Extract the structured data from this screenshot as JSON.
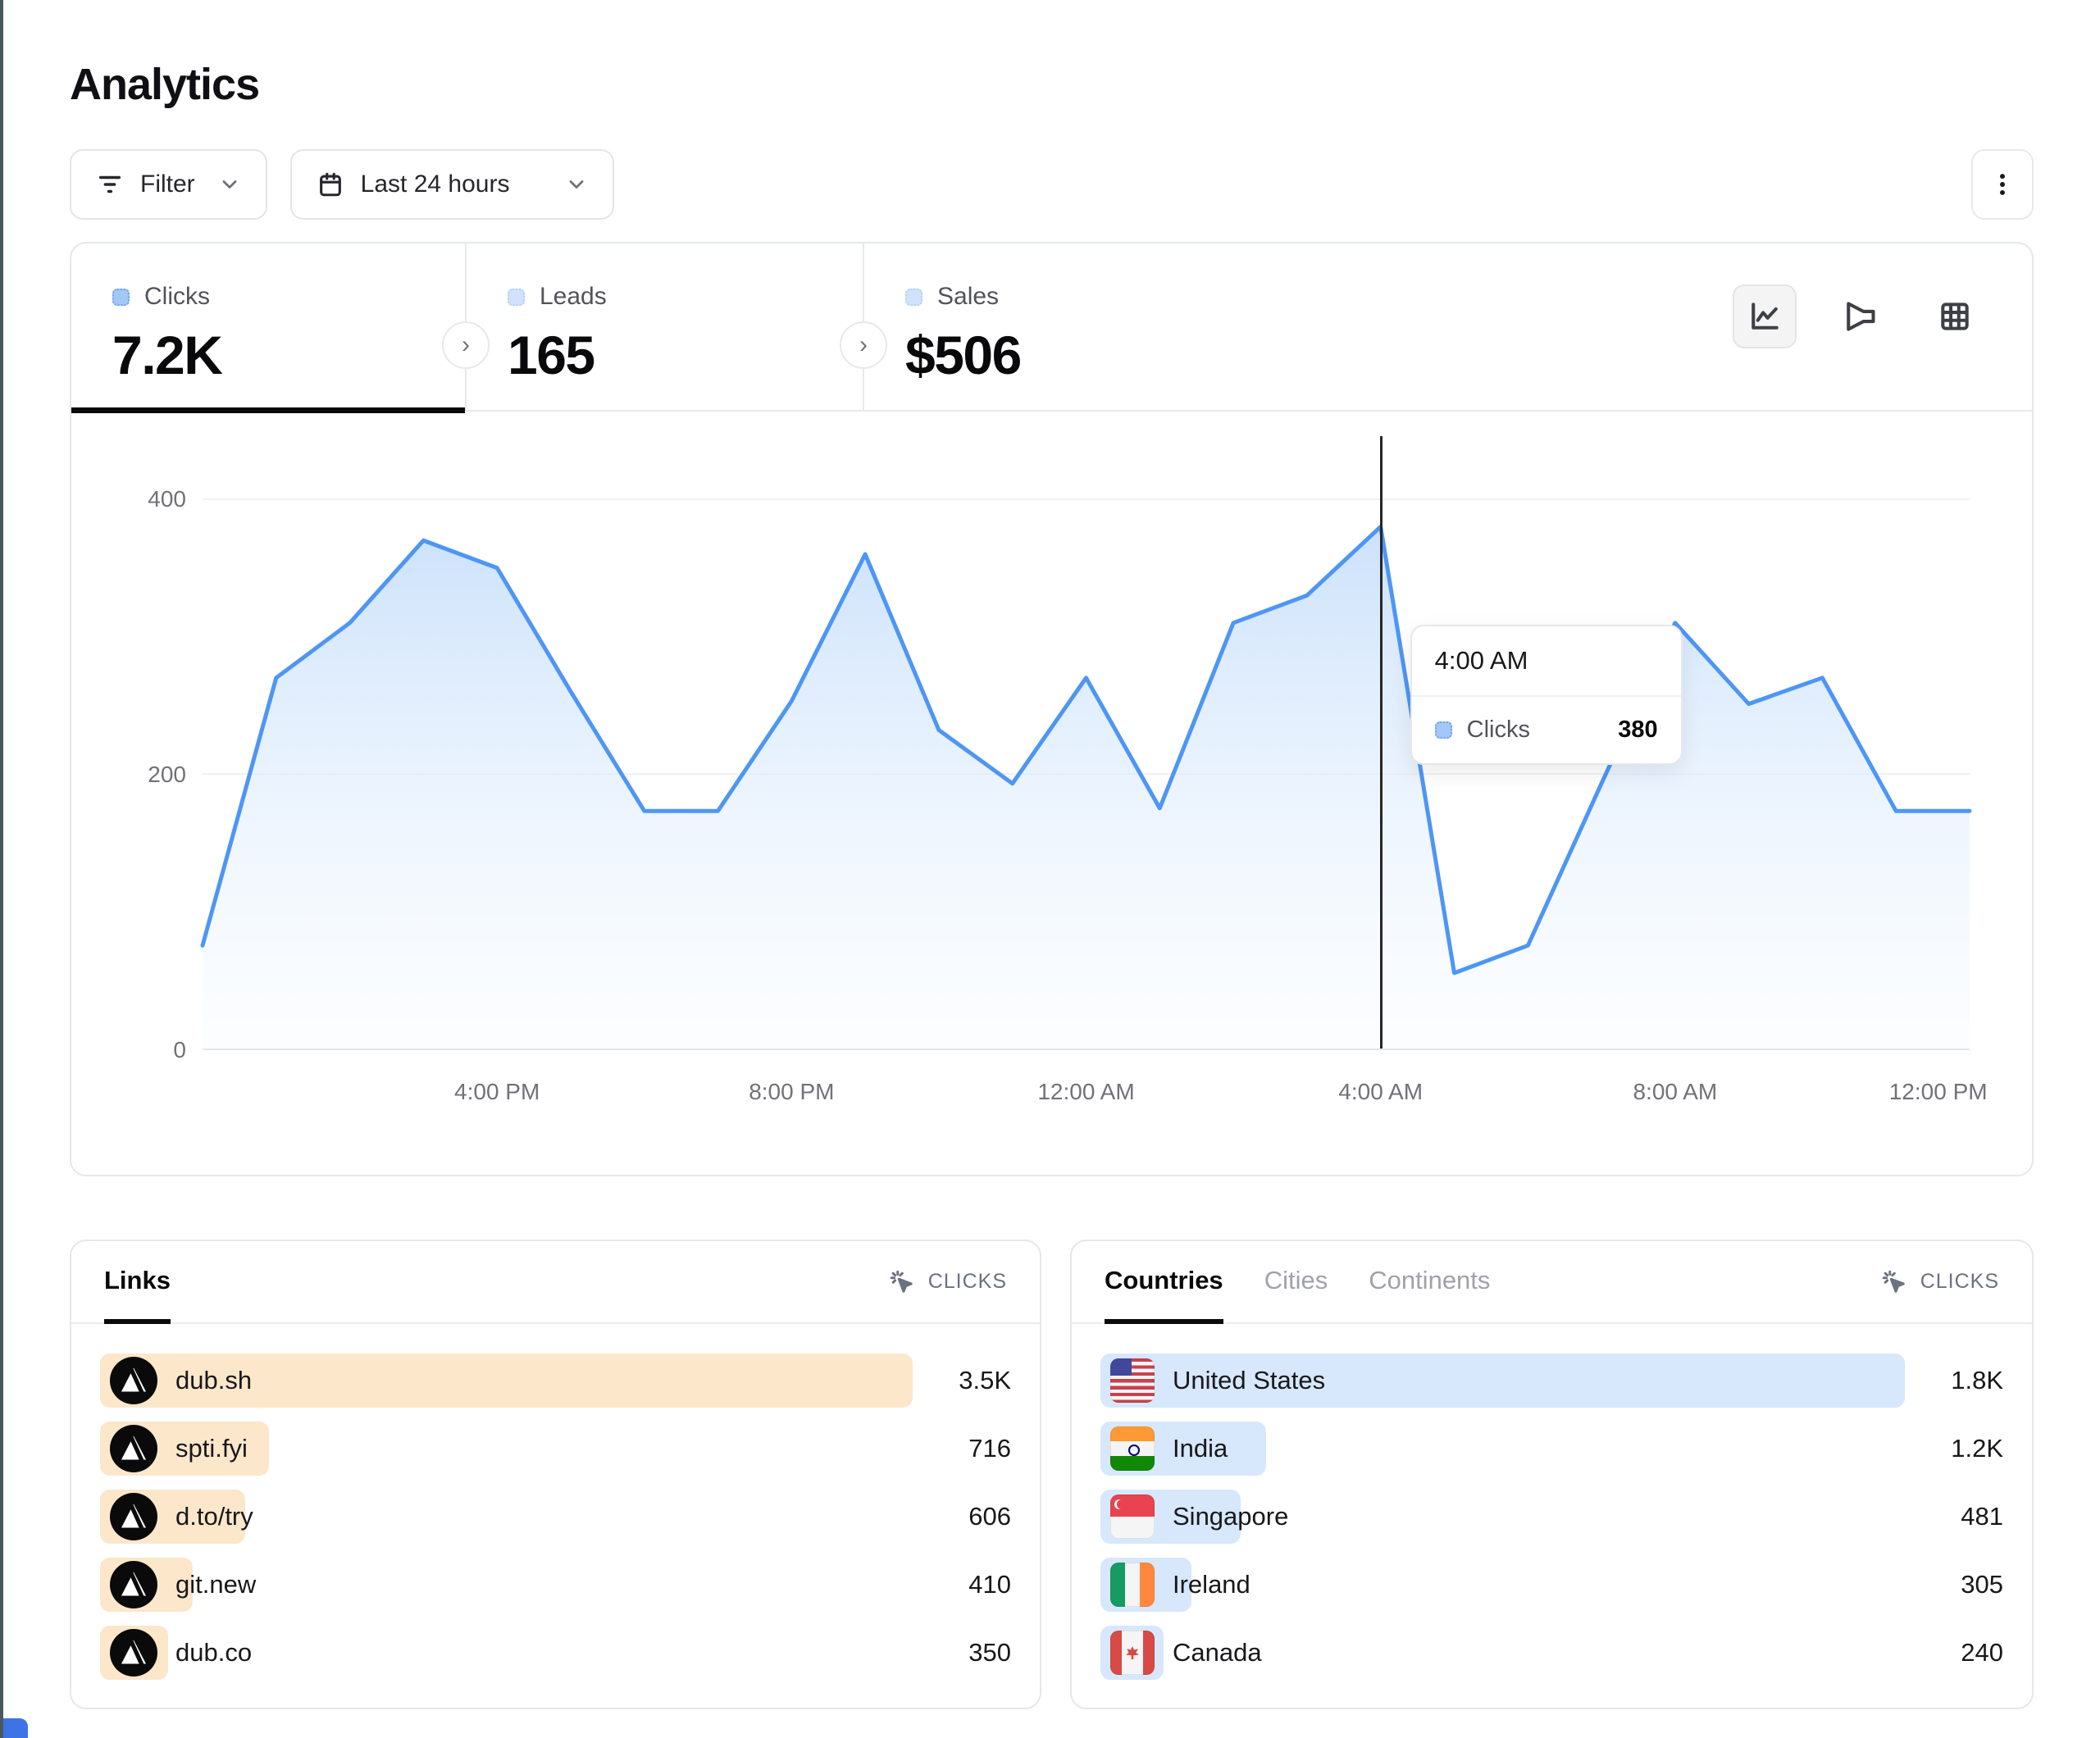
{
  "page": {
    "title": "Analytics"
  },
  "toolbar": {
    "filter": {
      "label": "Filter"
    },
    "date_range": {
      "label": "Last 24 hours"
    }
  },
  "stats": {
    "tabs": [
      {
        "label": "Clicks",
        "value": "7.2K",
        "active": true
      },
      {
        "label": "Leads",
        "value": "165",
        "active": false
      },
      {
        "label": "Sales",
        "value": "$506",
        "active": false
      }
    ]
  },
  "chart": {
    "y_ticks": [
      {
        "label": "400",
        "value": 400
      },
      {
        "label": "200",
        "value": 200
      },
      {
        "label": "0",
        "value": 0
      }
    ],
    "x_ticks": [
      {
        "label": "4:00 PM",
        "index": 4
      },
      {
        "label": "8:00 PM",
        "index": 8
      },
      {
        "label": "12:00 AM",
        "index": 12
      },
      {
        "label": "4:00 AM",
        "index": 16
      },
      {
        "label": "8:00 AM",
        "index": 20
      },
      {
        "label": "12:00 PM",
        "index": 24
      }
    ],
    "tooltip": {
      "time": "4:00 AM",
      "series": "Clicks",
      "value": "380"
    }
  },
  "chart_data": {
    "type": "area",
    "title": "Clicks over last 24 hours",
    "series_name": "Clicks",
    "x": [
      "12:00 PM",
      "1:00 PM",
      "2:00 PM",
      "3:00 PM",
      "4:00 PM",
      "5:00 PM",
      "6:00 PM",
      "7:00 PM",
      "8:00 PM",
      "9:00 PM",
      "10:00 PM",
      "11:00 PM",
      "12:00 AM",
      "1:00 AM",
      "2:00 AM",
      "3:00 AM",
      "4:00 AM",
      "5:00 AM",
      "6:00 AM",
      "7:00 AM",
      "8:00 AM",
      "9:00 AM",
      "10:00 AM",
      "11:00 AM",
      "12:00 PM"
    ],
    "values": [
      75,
      270,
      310,
      370,
      350,
      260,
      173,
      173,
      253,
      360,
      232,
      193,
      270,
      175,
      310,
      330,
      380,
      55,
      75,
      193,
      310,
      251,
      270,
      173,
      173
    ],
    "ylim": [
      0,
      400
    ],
    "y_gridlines": [
      0,
      200,
      400
    ],
    "highlight_index": 16,
    "grid": true,
    "legend": "none",
    "line_color": "#4e96f5"
  },
  "links_panel": {
    "tab": "Links",
    "metric_label": "CLICKS",
    "rows": [
      {
        "label": "dub.sh",
        "value": "3.5K",
        "bar_pct": 100
      },
      {
        "label": "spti.fyi",
        "value": "716",
        "bar_pct": 20.8
      },
      {
        "label": "d.to/try",
        "value": "606",
        "bar_pct": 17.9
      },
      {
        "label": "git.new",
        "value": "410",
        "bar_pct": 11.4
      },
      {
        "label": "dub.co",
        "value": "350",
        "bar_pct": 8.4
      }
    ]
  },
  "geo_panel": {
    "tabs": [
      {
        "label": "Countries",
        "active": true
      },
      {
        "label": "Cities",
        "active": false
      },
      {
        "label": "Continents",
        "active": false
      }
    ],
    "metric_label": "CLICKS",
    "rows": [
      {
        "label": "United States",
        "value": "1.8K",
        "bar_pct": 100,
        "flag": "us"
      },
      {
        "label": "India",
        "value": "1.2K",
        "bar_pct": 20.6,
        "flag": "in"
      },
      {
        "label": "Singapore",
        "value": "481",
        "bar_pct": 17.4,
        "flag": "sg"
      },
      {
        "label": "Ireland",
        "value": "305",
        "bar_pct": 11.3,
        "flag": "ie"
      },
      {
        "label": "Canada",
        "value": "240",
        "bar_pct": 7.8,
        "flag": "ca"
      }
    ]
  },
  "colors": {
    "accent_blue": "#4e96f5",
    "bar_blue": "#d7e7fc",
    "bar_cream": "#fce7cb",
    "chip_blue": "#a3c8f7",
    "border": "#e5e7eb",
    "text_dark": "#18181b",
    "text_gray": "#52525b",
    "text_light": "#9ca3af"
  }
}
